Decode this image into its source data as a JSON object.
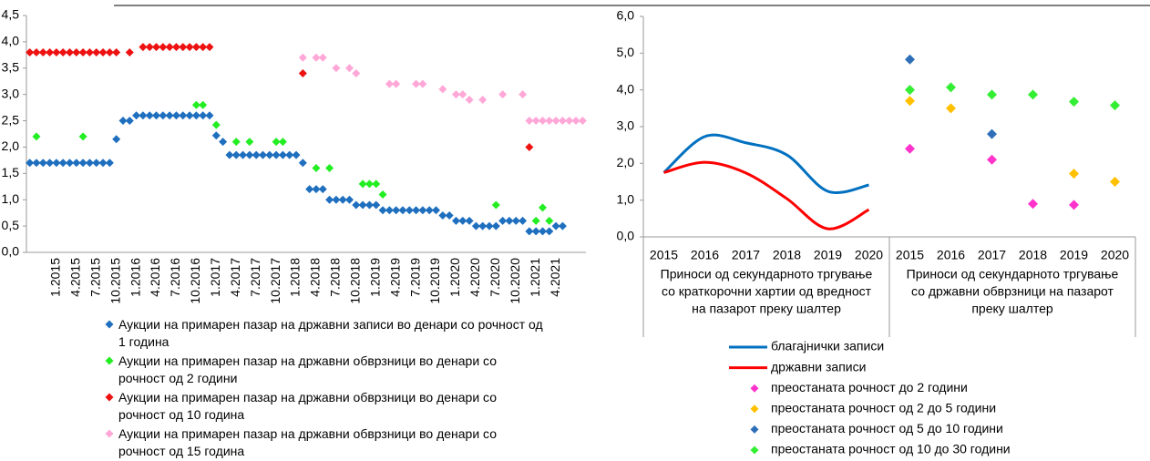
{
  "chart_data": [
    {
      "type": "scatter",
      "categories": [
        null,
        null,
        null,
        null,
        "1.2015",
        null,
        null,
        "4.2015",
        null,
        null,
        "7.2015",
        null,
        null,
        "10.2015",
        null,
        null,
        "1.2016",
        null,
        null,
        "4.2016",
        null,
        null,
        "7.2016",
        null,
        null,
        "10.2016",
        null,
        null,
        "1.2017",
        null,
        null,
        "4.2017",
        null,
        null,
        "7.2017",
        null,
        null,
        "10.2017",
        null,
        null,
        "1.2018",
        null,
        null,
        "4.2018",
        null,
        null,
        "7.2018",
        null,
        null,
        "10.2018",
        null,
        null,
        "1.2019",
        null,
        null,
        "4.2019",
        null,
        null,
        "7.2019",
        null,
        null,
        "10.2019",
        null,
        null,
        "1.2020",
        null,
        null,
        "4.2020",
        null,
        null,
        "7.2020",
        null,
        null,
        "10.2020",
        null,
        null,
        "1.2021",
        null,
        null,
        "4.2021",
        null,
        null,
        null,
        null
      ],
      "ylim": [
        0,
        4.5
      ],
      "yticks": [
        {
          "value": 0,
          "label": "0,0"
        },
        {
          "value": 0.5,
          "label": "0,5"
        },
        {
          "value": 1,
          "label": "1,0"
        },
        {
          "value": 1.5,
          "label": "1,5"
        },
        {
          "value": 2,
          "label": "2,0"
        },
        {
          "value": 2.5,
          "label": "2,5"
        },
        {
          "value": 3,
          "label": "3,0"
        },
        {
          "value": 3.5,
          "label": "3,5"
        },
        {
          "value": 4,
          "label": "4,0"
        },
        {
          "value": 4.5,
          "label": "4,5"
        }
      ],
      "series": [
        {
          "name": "Аукции на примарен пазар на државни записи во денари со рочност од 1 година",
          "color": "#1f6fbf",
          "values": [
            1.7,
            1.7,
            1.7,
            1.7,
            1.7,
            1.7,
            1.7,
            1.7,
            1.7,
            1.7,
            1.7,
            1.7,
            1.7,
            2.15,
            2.5,
            2.5,
            2.6,
            2.6,
            2.6,
            2.6,
            2.6,
            2.6,
            2.6,
            2.6,
            2.6,
            2.6,
            2.6,
            2.6,
            2.22,
            2.1,
            1.85,
            1.85,
            1.85,
            1.85,
            1.85,
            1.85,
            1.85,
            1.85,
            1.85,
            1.85,
            1.85,
            1.7,
            1.2,
            1.2,
            1.2,
            1.0,
            1.0,
            1.0,
            1.0,
            0.9,
            0.9,
            0.9,
            0.9,
            0.8,
            0.8,
            0.8,
            0.8,
            0.8,
            0.8,
            0.8,
            0.8,
            0.8,
            0.7,
            0.7,
            0.6,
            0.6,
            0.6,
            0.5,
            0.5,
            0.5,
            0.5,
            0.6,
            0.6,
            0.6,
            0.6,
            0.4,
            0.4,
            0.4,
            0.4,
            0.5,
            0.5,
            null,
            null,
            null
          ]
        },
        {
          "name": "Аукции на примарен пазар на државни обврзници во денари со рочност од 2 години",
          "color": "#22ee22",
          "values": [
            null,
            2.2,
            null,
            null,
            null,
            null,
            null,
            null,
            2.2,
            null,
            null,
            null,
            null,
            null,
            null,
            null,
            null,
            null,
            null,
            null,
            null,
            null,
            null,
            null,
            null,
            2.8,
            2.8,
            null,
            2.42,
            null,
            null,
            2.1,
            null,
            2.1,
            null,
            null,
            null,
            2.1,
            2.1,
            null,
            null,
            null,
            null,
            1.6,
            null,
            1.6,
            null,
            null,
            null,
            null,
            1.3,
            1.3,
            1.3,
            1.1,
            null,
            null,
            null,
            null,
            null,
            null,
            null,
            null,
            null,
            null,
            null,
            null,
            null,
            null,
            null,
            null,
            0.9,
            null,
            null,
            null,
            null,
            null,
            0.6,
            0.85,
            0.6,
            null,
            null,
            null,
            null,
            null
          ]
        },
        {
          "name": "Аукции на примарен пазар на државни обврзници во денари со рочност од 10 година",
          "color": "#ee1111",
          "values": [
            3.8,
            3.8,
            3.8,
            3.8,
            3.8,
            3.8,
            3.8,
            3.8,
            3.8,
            3.8,
            3.8,
            3.8,
            3.8,
            3.8,
            null,
            3.8,
            null,
            3.9,
            3.9,
            3.9,
            3.9,
            3.9,
            3.9,
            3.9,
            3.9,
            3.9,
            3.9,
            3.9,
            null,
            null,
            null,
            null,
            null,
            null,
            null,
            null,
            null,
            null,
            null,
            null,
            null,
            3.4,
            null,
            null,
            null,
            null,
            null,
            null,
            null,
            null,
            null,
            null,
            null,
            null,
            null,
            null,
            null,
            null,
            null,
            null,
            null,
            null,
            null,
            null,
            null,
            null,
            null,
            null,
            null,
            null,
            null,
            null,
            null,
            null,
            null,
            2.0,
            null,
            null,
            null,
            null,
            null,
            null,
            null,
            null
          ]
        },
        {
          "name": "Аукции на примарен пазар на државни обврзници во денари со рочност од 15 година",
          "color": "#ffa8d8",
          "values": [
            null,
            null,
            null,
            null,
            null,
            null,
            null,
            null,
            null,
            null,
            null,
            null,
            null,
            null,
            null,
            null,
            null,
            null,
            null,
            null,
            null,
            null,
            null,
            null,
            null,
            null,
            null,
            null,
            null,
            null,
            null,
            null,
            null,
            null,
            null,
            null,
            null,
            null,
            null,
            null,
            null,
            3.7,
            null,
            3.7,
            3.7,
            null,
            3.5,
            null,
            3.5,
            3.4,
            null,
            null,
            null,
            null,
            3.2,
            3.2,
            null,
            null,
            3.2,
            3.2,
            null,
            null,
            3.1,
            null,
            3.0,
            3.0,
            2.9,
            null,
            2.9,
            null,
            null,
            3.0,
            null,
            null,
            3.0,
            2.5,
            2.5,
            2.5,
            2.5,
            2.5,
            2.5,
            2.5,
            2.5,
            2.5
          ]
        }
      ]
    },
    {
      "type": "combo",
      "categories": [
        "2015",
        "2016",
        "2017",
        "2018",
        "2019",
        "2020",
        "2015",
        "2016",
        "2017",
        "2018",
        "2019",
        "2020"
      ],
      "group_labels": [
        [
          "Приноси од секундарното тргување",
          "со краткорочни хартии од вредност",
          "на пазарот преку шалтер"
        ],
        [
          "Приноси од секундарното тргување",
          "со државни обврзници на пазарот",
          "преку шалтер"
        ]
      ],
      "ylim": [
        0,
        6
      ],
      "yticks": [
        {
          "value": 0,
          "label": "0,0"
        },
        {
          "value": 1,
          "label": "1,0"
        },
        {
          "value": 2,
          "label": "2,0"
        },
        {
          "value": 3,
          "label": "3,0"
        },
        {
          "value": 4,
          "label": "4,0"
        },
        {
          "value": 5,
          "label": "5,0"
        },
        {
          "value": 6,
          "label": "6,0"
        }
      ],
      "series": [
        {
          "name": "благајнички записи",
          "type": "line",
          "color": "#0070c0",
          "values": [
            1.75,
            2.73,
            2.56,
            2.23,
            1.24,
            1.41,
            null,
            null,
            null,
            null,
            null,
            null
          ]
        },
        {
          "name": "државни записи",
          "type": "line",
          "color": "#ff0000",
          "values": [
            1.75,
            2.03,
            1.74,
            1.04,
            0.22,
            0.74,
            null,
            null,
            null,
            null,
            null,
            null
          ]
        },
        {
          "name": "преостаната рочност до 2 години",
          "type": "scatter",
          "color": "#ff33cc",
          "values": [
            null,
            null,
            null,
            null,
            null,
            null,
            2.4,
            null,
            2.1,
            0.9,
            0.87,
            null
          ]
        },
        {
          "name": "преостаната рочност од 2 до 5 години",
          "type": "scatter",
          "color": "#ffc000",
          "values": [
            null,
            null,
            null,
            null,
            null,
            null,
            3.7,
            3.5,
            null,
            null,
            1.72,
            1.5
          ]
        },
        {
          "name": "преостаната рочност од 5 до 10 години",
          "type": "scatter",
          "color": "#2e6fb8",
          "values": [
            null,
            null,
            null,
            null,
            null,
            null,
            4.83,
            null,
            2.8,
            null,
            null,
            null
          ]
        },
        {
          "name": "преостаната рочност од 10 до 30 години",
          "type": "scatter",
          "color": "#33ee33",
          "values": [
            null,
            null,
            null,
            null,
            null,
            null,
            4.0,
            4.07,
            3.87,
            3.87,
            3.68,
            3.58
          ]
        }
      ]
    }
  ]
}
